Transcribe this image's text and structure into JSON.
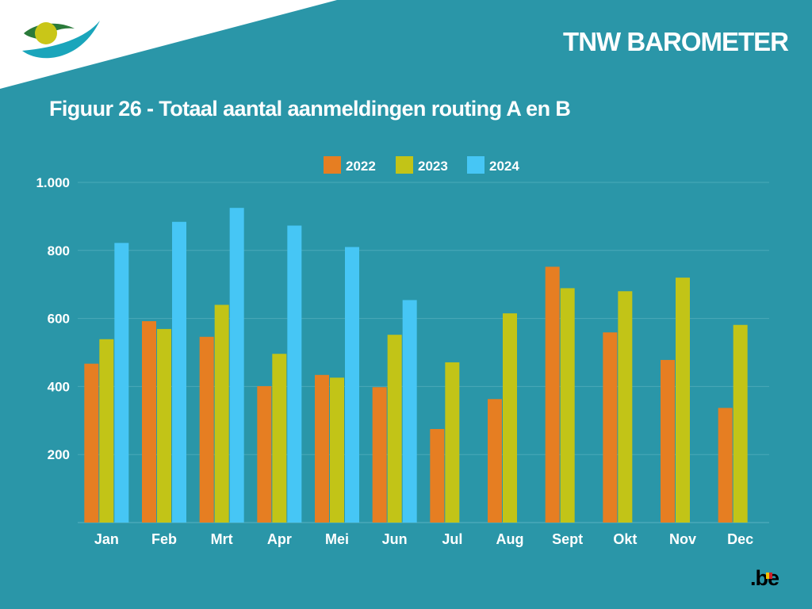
{
  "header": {
    "brand": "TNW BAROMETER",
    "figure_title": "Figuur 26 - Totaal aantal aanmeldingen routing A en B"
  },
  "footer": {
    "logo_text": ".be"
  },
  "colors": {
    "background": "#2a96a8",
    "series_2022": "#e67e22",
    "series_2023": "#c2c417",
    "series_2024": "#46c6f5",
    "gridline": "#4aa9b9",
    "text": "#ffffff"
  },
  "chart_data": {
    "type": "bar",
    "title": "Figuur 26 - Totaal aantal aanmeldingen routing A en B",
    "xlabel": "",
    "ylabel": "",
    "categories": [
      "Jan",
      "Feb",
      "Mrt",
      "Apr",
      "Mei",
      "Jun",
      "Jul",
      "Aug",
      "Sept",
      "Okt",
      "Nov",
      "Dec"
    ],
    "series": [
      {
        "name": "2022",
        "color": "#e67e22",
        "values": [
          467,
          592,
          546,
          401,
          434,
          398,
          275,
          363,
          752,
          559,
          478,
          337
        ]
      },
      {
        "name": "2023",
        "color": "#c2c417",
        "values": [
          539,
          569,
          640,
          496,
          426,
          552,
          471,
          615,
          689,
          680,
          720,
          581
        ]
      },
      {
        "name": "2024",
        "color": "#46c6f5",
        "values": [
          822,
          884,
          925,
          873,
          810,
          654,
          null,
          null,
          null,
          null,
          null,
          null
        ]
      }
    ],
    "ylim": [
      0,
      1000
    ],
    "yticks": [
      200,
      400,
      600,
      800,
      1000
    ],
    "ytick_labels": [
      "200",
      "400",
      "600",
      "800",
      "1.000"
    ],
    "grid": true,
    "legend_position": "top-center"
  }
}
